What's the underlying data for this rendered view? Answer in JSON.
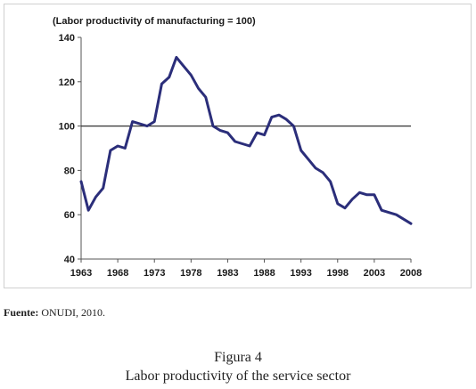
{
  "chart_data": {
    "type": "line",
    "unit_label": "(Labor productivity of manufacturing = 100)",
    "title": "",
    "xlabel": "",
    "ylabel": "",
    "ylim": [
      40,
      140
    ],
    "yticks": [
      40,
      60,
      80,
      100,
      120,
      140
    ],
    "xlim": [
      1963,
      2008
    ],
    "xticks": [
      1963,
      1968,
      1973,
      1978,
      1983,
      1988,
      1993,
      1998,
      2003,
      2008
    ],
    "reference_line": 100,
    "grid": false,
    "line_color": "#2b2e7a",
    "x": [
      1963,
      1964,
      1965,
      1966,
      1967,
      1968,
      1969,
      1970,
      1971,
      1972,
      1973,
      1974,
      1975,
      1976,
      1977,
      1978,
      1979,
      1980,
      1981,
      1982,
      1983,
      1984,
      1985,
      1986,
      1987,
      1988,
      1989,
      1990,
      1991,
      1992,
      1993,
      1994,
      1995,
      1996,
      1997,
      1998,
      1999,
      2000,
      2001,
      2002,
      2003,
      2004,
      2005,
      2006,
      2007,
      2008
    ],
    "series": [
      {
        "values": [
          75,
          62,
          68,
          72,
          89,
          91,
          90,
          102,
          101,
          100,
          102,
          119,
          122,
          131,
          127,
          123,
          117,
          113,
          100,
          98,
          97,
          93,
          92,
          91,
          97,
          96,
          104,
          105,
          103,
          100,
          89,
          85,
          81,
          79,
          75,
          65,
          63,
          67,
          70,
          69,
          69,
          62,
          61,
          60,
          58,
          56
        ]
      }
    ]
  },
  "source": {
    "label": "Fuente:",
    "text": "ONUDI, 2010."
  },
  "caption": {
    "number": "Figura 4",
    "title": "Labor productivity of the service sector"
  }
}
